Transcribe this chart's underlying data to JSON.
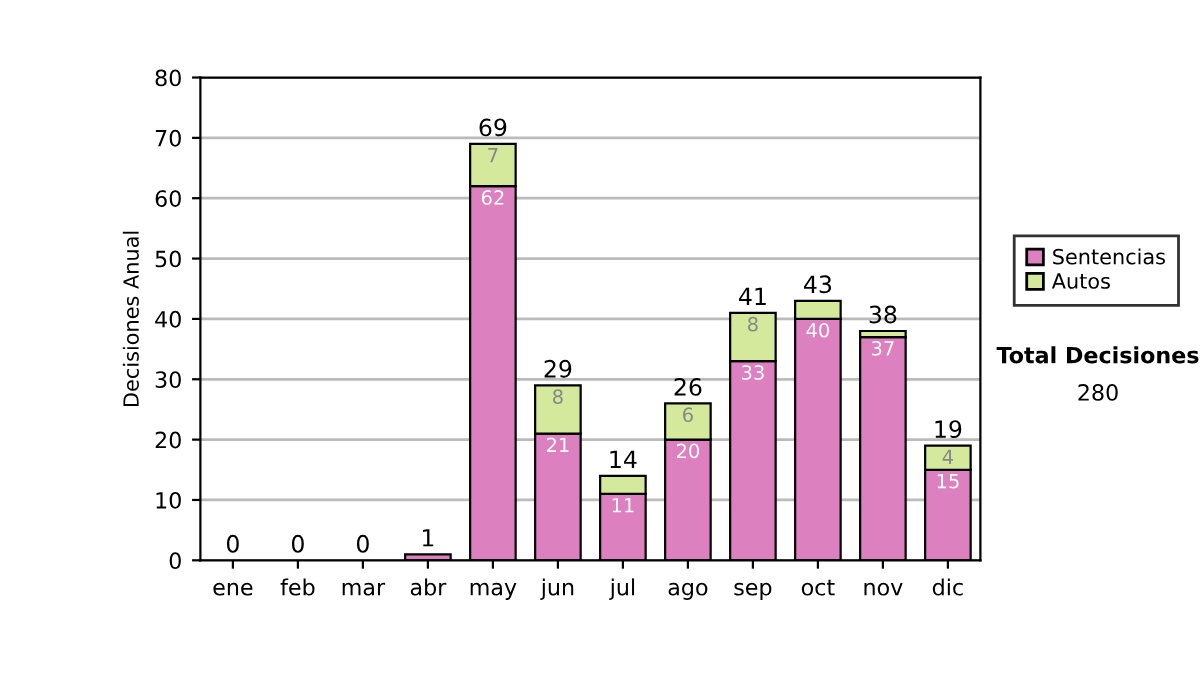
{
  "chart_data": {
    "type": "bar",
    "stacked": true,
    "ylabel": "Decisiones Anual",
    "categories": [
      "ene",
      "feb",
      "mar",
      "abr",
      "may",
      "jun",
      "jul",
      "ago",
      "sep",
      "oct",
      "nov",
      "dic"
    ],
    "series": [
      {
        "name": "Sentencias",
        "color": "#dd80c0",
        "values": [
          0,
          0,
          0,
          1,
          62,
          21,
          11,
          20,
          33,
          40,
          37,
          15
        ],
        "value_labels": [
          null,
          null,
          null,
          null,
          "62",
          "21",
          "11",
          "20",
          "33",
          "40",
          "37",
          "15"
        ]
      },
      {
        "name": "Autos",
        "color": "#d4e99b",
        "values": [
          0,
          0,
          0,
          0,
          7,
          8,
          3,
          6,
          8,
          3,
          1,
          4
        ],
        "value_labels": [
          null,
          null,
          null,
          null,
          "7",
          "8",
          null,
          "6",
          "8",
          null,
          null,
          "4"
        ]
      }
    ],
    "totals": [
      "0",
      "0",
      "0",
      "1",
      "69",
      "29",
      "14",
      "26",
      "41",
      "43",
      "38",
      "19"
    ],
    "ylim": [
      0,
      80
    ],
    "yticks": [
      0,
      10,
      20,
      30,
      40,
      50,
      60,
      70,
      80
    ],
    "grid": "y",
    "legend": "right",
    "annotations": [
      "Total Decisiones",
      "280"
    ]
  }
}
